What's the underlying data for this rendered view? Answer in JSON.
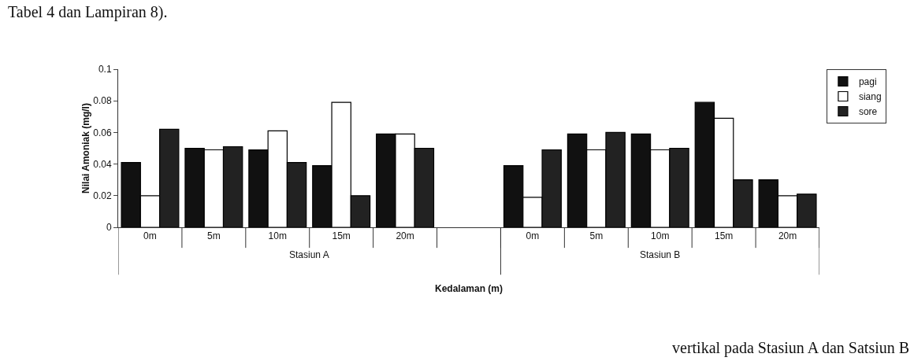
{
  "chart_data": {
    "type": "bar",
    "categories": [
      "0m",
      "5m",
      "10m",
      "15m",
      "20m",
      null,
      "0m",
      "5m",
      "10m",
      "15m",
      "20m"
    ],
    "series": [
      {
        "name": "pagi",
        "color": "#111111",
        "values": [
          0.041,
          0.05,
          0.049,
          0.039,
          0.059,
          null,
          0.039,
          0.059,
          0.059,
          0.079,
          0.03
        ]
      },
      {
        "name": "siang",
        "color": "#ffffff",
        "values": [
          0.02,
          0.049,
          0.061,
          0.079,
          0.059,
          null,
          0.019,
          0.049,
          0.049,
          0.069,
          0.02
        ]
      },
      {
        "name": "sore",
        "color": "#222222",
        "values": [
          0.062,
          0.051,
          0.041,
          0.02,
          0.05,
          null,
          0.049,
          0.06,
          0.05,
          0.03,
          0.021
        ]
      }
    ],
    "ylim": [
      0,
      0.1
    ],
    "yticks": [
      0,
      0.02,
      0.04,
      0.06,
      0.08,
      0.1
    ],
    "ylabel": "Nilai Amoniak (mg/l)",
    "xlabel": "Kedalaman (m)",
    "annotations": [
      "Stasiun A",
      "Stasiun B",
      "Tabel 4 dan Lampiran 8).",
      "vertikal pada Stasiun A dan Satsiun B"
    ],
    "grid": false,
    "legend": "top right"
  }
}
